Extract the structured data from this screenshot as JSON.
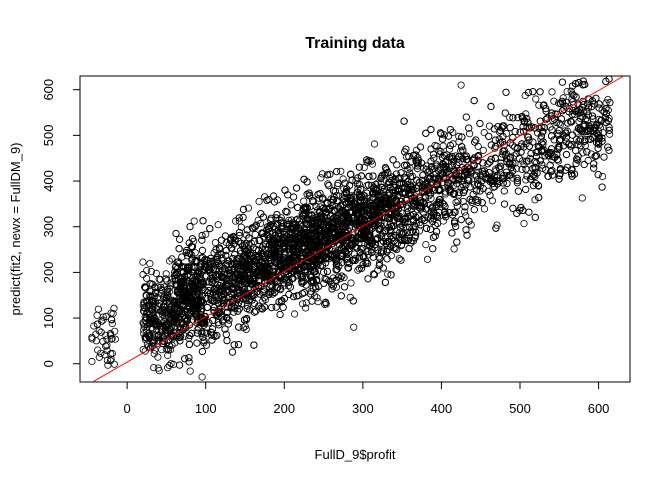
{
  "chart_data": {
    "type": "scatter",
    "title": "Training data",
    "xlabel": "FullD_9$profit",
    "ylabel": "predict(fit2, newx = FullDM_9)",
    "xlim": [
      -60,
      640
    ],
    "ylim": [
      -40,
      630
    ],
    "xticks": [
      0,
      100,
      200,
      300,
      400,
      500,
      600
    ],
    "yticks": [
      0,
      100,
      200,
      300,
      400,
      500,
      600
    ],
    "grid": false,
    "legend": "none",
    "point_style": "open-circle",
    "point_color": "#000000",
    "fit_line": {
      "color": "#ff0000",
      "from": [
        -44,
        -40
      ],
      "to": [
        635,
        633
      ]
    },
    "point_count": 6000,
    "distribution": {
      "clusters": [
        {
          "x_range": [
            -45,
            -15
          ],
          "y_mean": 70,
          "y_sd": 40
        },
        {
          "x_range": [
            20,
            60
          ],
          "y_mean": 100,
          "y_sd": 45
        },
        {
          "x_range": [
            60,
            620
          ],
          "slope": 0.75,
          "intercept": 85,
          "y_sd": 55
        }
      ]
    }
  }
}
